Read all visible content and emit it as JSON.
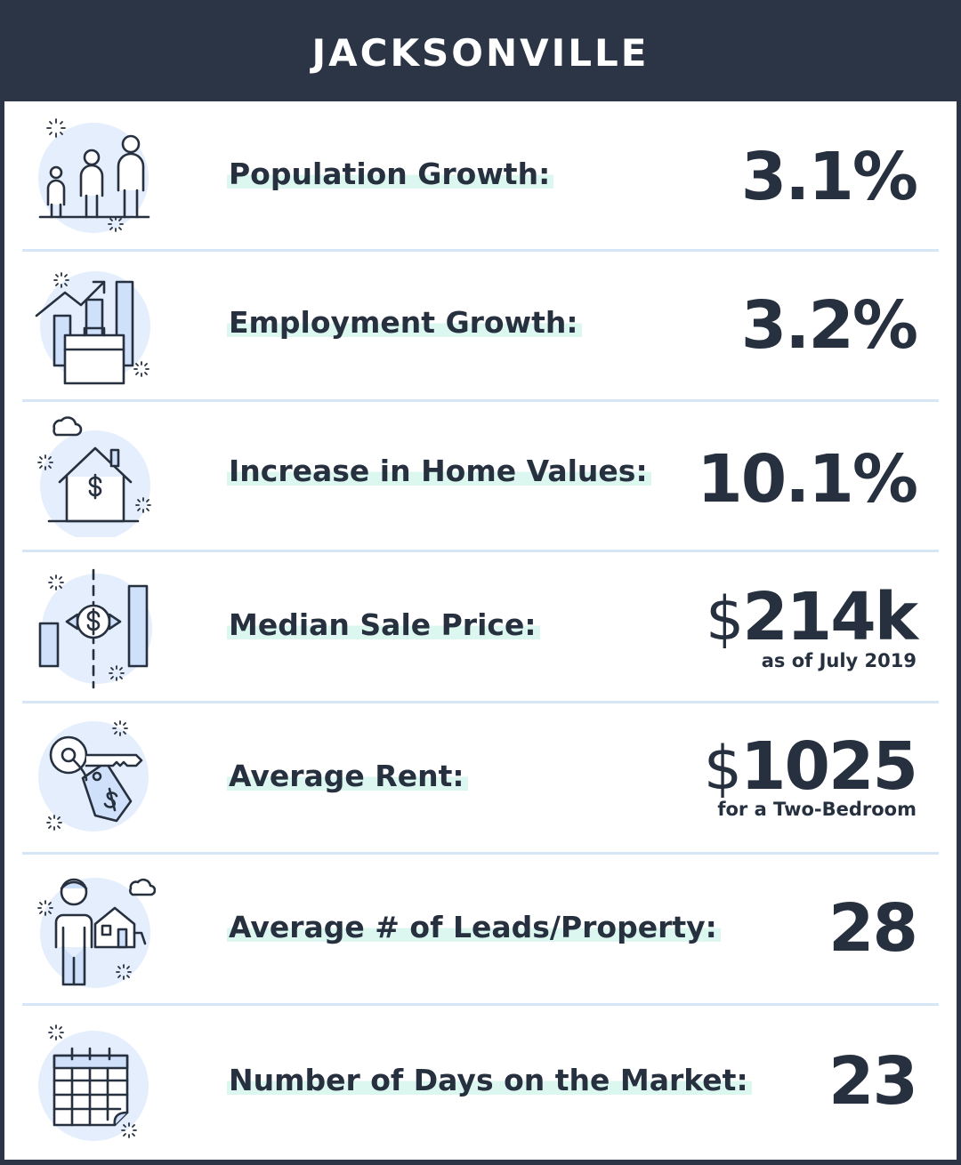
{
  "title": "JACKSONVILLE",
  "colors": {
    "header_bg": "#2b3546",
    "text": "#26303f",
    "divider": "#d6e6f7",
    "label_highlight": "#dcf7ef",
    "icon_circle": "#e4eefc",
    "icon_fill": "#cfe0fb"
  },
  "stats": [
    {
      "icon": "population-icon",
      "label": "Population Growth:",
      "value": "3.1%",
      "note": ""
    },
    {
      "icon": "employment-icon",
      "label": "Employment Growth:",
      "value": "3.2%",
      "note": ""
    },
    {
      "icon": "home-value-icon",
      "label": "Increase in Home Values:",
      "value": "10.1%",
      "note": ""
    },
    {
      "icon": "sale-price-icon",
      "label": "Median Sale Price:",
      "value_symbol": "$",
      "value": "214k",
      "note": "as of July 2019"
    },
    {
      "icon": "rent-tag-icon",
      "label": "Average Rent:",
      "value_symbol": "$",
      "value": "1025",
      "note": "for a Two-Bedroom"
    },
    {
      "icon": "leads-icon",
      "label": "Average # of Leads/Property:",
      "value": "28",
      "note": ""
    },
    {
      "icon": "calendar-icon",
      "label": "Number of Days on the Market:",
      "value": "23",
      "note": ""
    }
  ]
}
